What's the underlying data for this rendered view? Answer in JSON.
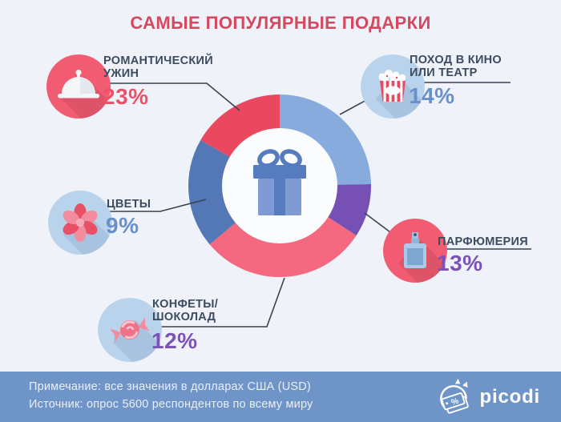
{
  "title": "САМЫЕ ПОПУЛЯРНЫЕ ПОДАРКИ",
  "chart_data": {
    "type": "pie",
    "donut": true,
    "title": "САМЫЕ ПОПУЛЯРНЫЕ ПОДАРКИ",
    "center_icon": "gift-icon",
    "legend_position": "callouts-around-chart",
    "note": "arc angles as drawn in the infographic (not proportional to values)",
    "segments": [
      {
        "label": "ПОХОД В КИНО ИЛИ ТЕАТР",
        "value_pct": 14,
        "color": "#87abdc",
        "start_deg": 0,
        "end_deg": 89
      },
      {
        "label": "ПАРФЮМЕРИЯ",
        "value_pct": 13,
        "color": "#7650b4",
        "start_deg": 89,
        "end_deg": 123
      },
      {
        "label": "КОНФЕТЫ/ШОКОЛАД",
        "value_pct": 12,
        "color": "#f4697f",
        "start_deg": 123,
        "end_deg": 230
      },
      {
        "label": "ЦВЕТЫ",
        "value_pct": 9,
        "color": "#5478b6",
        "start_deg": 230,
        "end_deg": 300
      },
      {
        "label": "РОМАНТИЧЕСКИЙ УЖИН",
        "value_pct": 23,
        "color": "#e9485e",
        "start_deg": 300,
        "end_deg": 360
      }
    ]
  },
  "callouts": [
    {
      "name": "romantic-dinner",
      "line1": "РОМАНТИЧЕСКИЙ",
      "line2": "УЖИН",
      "pct": "23%",
      "icon": "cloche-icon"
    },
    {
      "name": "cinema-theatre",
      "line1": "ПОХОД В КИНО",
      "line2": "ИЛИ ТЕАТР",
      "pct": "14%",
      "icon": "popcorn-icon"
    },
    {
      "name": "flowers",
      "line1": "ЦВЕТЫ",
      "line2": "",
      "pct": "9%",
      "icon": "flower-icon"
    },
    {
      "name": "perfume",
      "line1": "ПАРФЮМЕРИЯ",
      "line2": "",
      "pct": "13%",
      "icon": "perfume-icon"
    },
    {
      "name": "candy-chocolate",
      "line1": "КОНФЕТЫ/",
      "line2": "ШОКОЛАД",
      "pct": "12%",
      "icon": "candy-icon"
    }
  ],
  "footer": {
    "note": "Примечание: все значения в долларах США (USD)",
    "source": "Источник: опрос 5600 респондентов по всему миру",
    "brand": "picodi"
  },
  "colors": {
    "background": "#eff3f9",
    "title": "#d5495f",
    "label_text": "#3c4b60",
    "pct_red": "#ee5068",
    "pct_blue": "#6890cb",
    "pct_purple": "#7b52b6",
    "circle_red": "#f25c72",
    "circle_blue": "#b9d3ec",
    "connector": "#3a4150",
    "footer_bg": "#6f94c8",
    "donut_hole": "#fbfcfe"
  }
}
